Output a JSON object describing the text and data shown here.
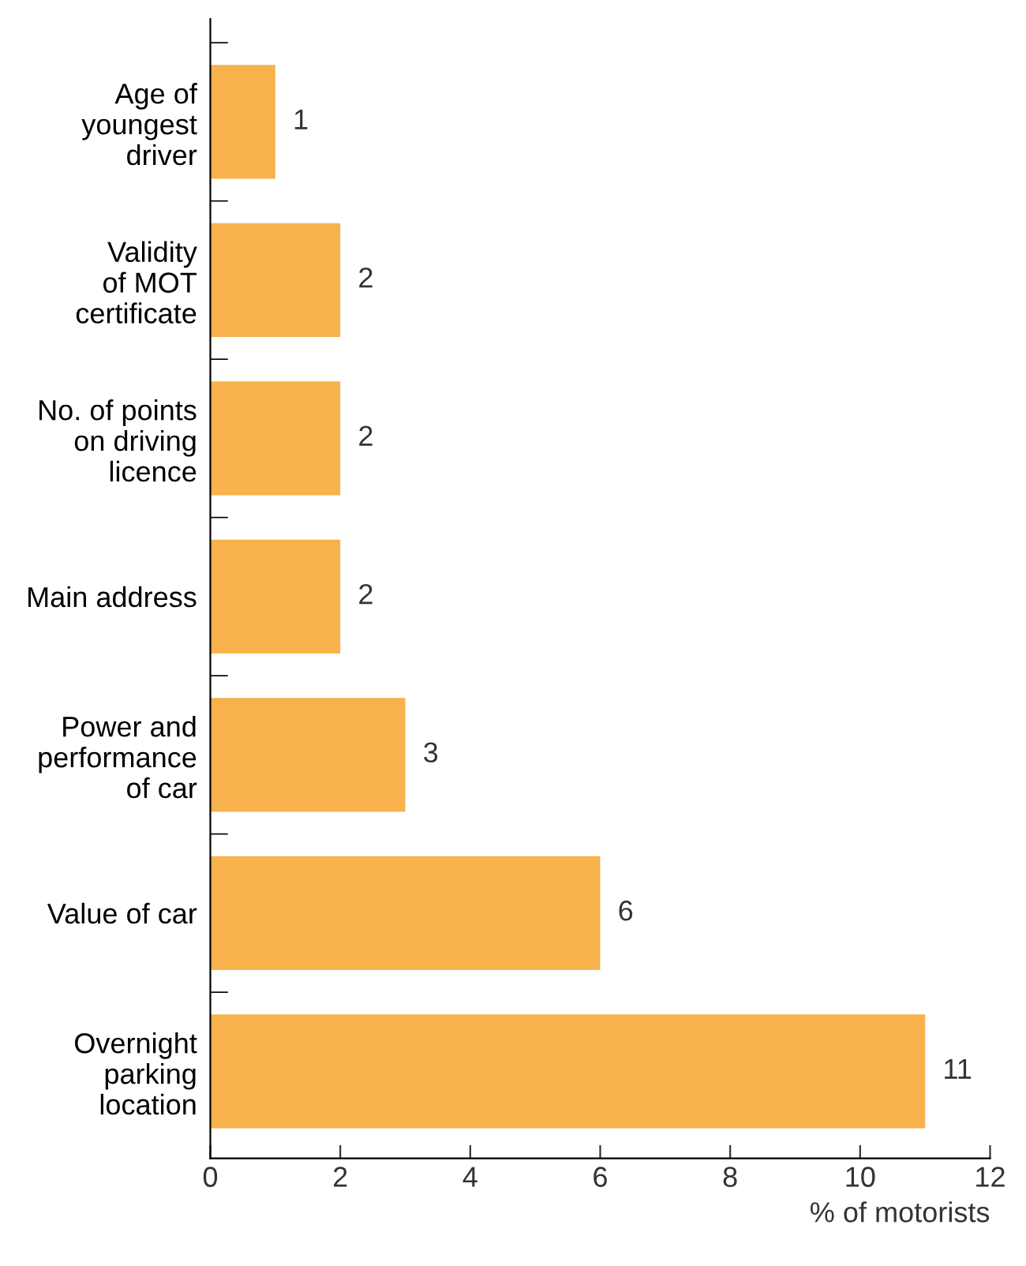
{
  "chart_data": {
    "type": "bar",
    "orientation": "horizontal",
    "categories": [
      "Age of\nyoungest\ndriver",
      "Validity\nof MOT\ncertificate",
      "No. of points\non driving\nlicence",
      "Main address",
      "Power and\nperformance\nof car",
      "Value of car",
      "Overnight\nparking\nlocation"
    ],
    "values": [
      1,
      2,
      2,
      2,
      3,
      6,
      11
    ],
    "color": "#f7b24c",
    "xlabel": "% of motorists",
    "xlim": [
      0,
      12
    ],
    "xticks": [
      0,
      2,
      4,
      6,
      8,
      10,
      12
    ],
    "data_labels": true,
    "grid": false,
    "legend": false
  }
}
